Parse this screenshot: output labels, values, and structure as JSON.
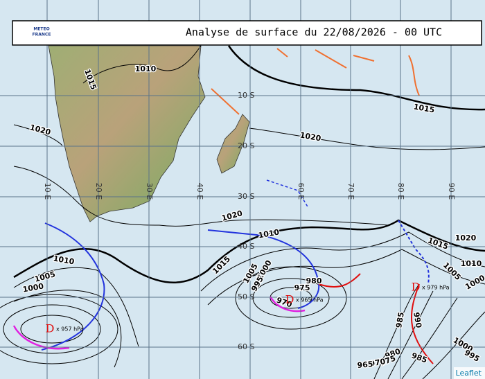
{
  "header": {
    "title": "Analyse de surface du 22/08/2026 - 00 UTC",
    "logo": [
      "METEO",
      "FRANCE"
    ]
  },
  "grid": {
    "lat_labels": [
      "10 S",
      "20 S",
      "30 S",
      "40 S",
      "50 S",
      "60 S"
    ],
    "lon_labels": [
      "10 E",
      "20 E",
      "30 E",
      "40 E",
      "60 E",
      "70 E",
      "80 E",
      "90 E"
    ]
  },
  "isobar_labels": [
    "1015",
    "1010",
    "1015",
    "1020",
    "1020",
    "1020",
    "1010",
    "1015",
    "1020",
    "1010",
    "1015",
    "1010",
    "1005",
    "1000",
    "1005",
    "1000",
    "995",
    "1005",
    "1000",
    "975",
    "980",
    "970",
    "985",
    "990",
    "1000",
    "995",
    "985",
    "980",
    "975",
    "970",
    "965"
  ],
  "lows": [
    {
      "symbol": "D",
      "pressure": "x 957 hPa"
    },
    {
      "symbol": "D",
      "pressure": "x 965 hPa"
    },
    {
      "symbol": "D",
      "pressure": "x 979 hPa"
    }
  ],
  "attribution": "Leaflet"
}
